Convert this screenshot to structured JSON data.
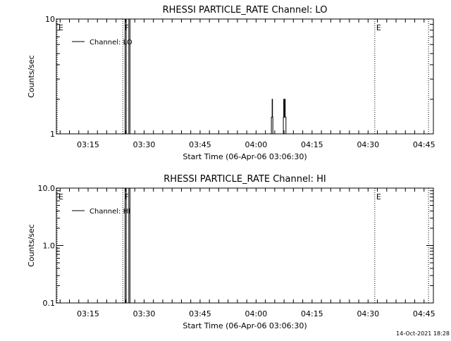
{
  "footer": {
    "timestamp": "14-Oct-2021 18:28"
  },
  "chart_data": [
    {
      "type": "line",
      "title": "RHESSI PARTICLE_RATE Channel: LO",
      "xlabel": "Start Time (06-Apr-06 03:06:30)",
      "ylabel": "Counts/sec",
      "y_scale": "log",
      "ylim": [
        1,
        10
      ],
      "x_unit": "minutes after 03:06:30",
      "xlim": [
        0,
        101
      ],
      "x_ticks": [
        {
          "label": "03:15",
          "x": 8.5
        },
        {
          "label": "03:30",
          "x": 23.5
        },
        {
          "label": "03:45",
          "x": 38.5
        },
        {
          "label": "04:00",
          "x": 53.5
        },
        {
          "label": "04:15",
          "x": 68.5
        },
        {
          "label": "04:30",
          "x": 83.5
        },
        {
          "label": "04:45",
          "x": 98.5
        }
      ],
      "y_ticks": [
        {
          "label": "1",
          "value": 1
        },
        {
          "label": "10",
          "value": 10
        }
      ],
      "legend": {
        "entries": [
          "Channel: LO"
        ],
        "position": "top-left"
      },
      "markers": [
        {
          "label": "E",
          "x": 0.2
        },
        {
          "label": "F",
          "x": 17.8
        },
        {
          "label": "E",
          "x": 85.3
        },
        {
          "label": "",
          "x": 99.7
        }
      ],
      "series": [
        {
          "name": "Channel: LO",
          "points": [
            [
              18.4,
              1
            ],
            [
              18.4,
              10
            ],
            [
              18.7,
              10
            ],
            [
              18.7,
              1
            ],
            [
              19.4,
              1
            ],
            [
              19.4,
              10
            ],
            [
              19.7,
              10
            ],
            [
              19.7,
              1
            ],
            [
              57.6,
              1
            ],
            [
              57.6,
              1.4
            ],
            [
              57.8,
              1.4
            ],
            [
              57.8,
              2
            ],
            [
              57.9,
              2
            ],
            [
              57.9,
              1.4
            ],
            [
              58.0,
              1.4
            ],
            [
              58.0,
              1
            ],
            [
              60.8,
              1
            ],
            [
              60.8,
              1.4
            ],
            [
              60.9,
              1.4
            ],
            [
              60.9,
              2
            ],
            [
              61.0,
              2
            ],
            [
              61.0,
              1.4
            ],
            [
              61.2,
              1.4
            ],
            [
              61.2,
              2
            ],
            [
              61.3,
              2
            ],
            [
              61.3,
              1.4
            ],
            [
              61.5,
              1.4
            ],
            [
              61.5,
              1
            ]
          ]
        }
      ]
    },
    {
      "type": "line",
      "title": "RHESSI PARTICLE_RATE Channel: HI",
      "xlabel": "Start Time (06-Apr-06 03:06:30)",
      "ylabel": "Counts/sec",
      "y_scale": "log",
      "ylim": [
        0.1,
        10
      ],
      "x_unit": "minutes after 03:06:30",
      "xlim": [
        0,
        101
      ],
      "x_ticks": [
        {
          "label": "03:15",
          "x": 8.5
        },
        {
          "label": "03:30",
          "x": 23.5
        },
        {
          "label": "03:45",
          "x": 38.5
        },
        {
          "label": "04:00",
          "x": 53.5
        },
        {
          "label": "04:15",
          "x": 68.5
        },
        {
          "label": "04:30",
          "x": 83.5
        },
        {
          "label": "04:45",
          "x": 98.5
        }
      ],
      "y_ticks": [
        {
          "label": "0.1",
          "value": 0.1
        },
        {
          "label": "1.0",
          "value": 1
        },
        {
          "label": "10.0",
          "value": 10
        }
      ],
      "legend": {
        "entries": [
          "Channel: HI"
        ],
        "position": "top-left"
      },
      "markers": [
        {
          "label": "E",
          "x": 0.2
        },
        {
          "label": "F",
          "x": 17.8
        },
        {
          "label": "E",
          "x": 85.3
        },
        {
          "label": "",
          "x": 99.7
        }
      ],
      "series": [
        {
          "name": "Channel: HI",
          "points": [
            [
              18.4,
              0.1
            ],
            [
              18.4,
              10
            ],
            [
              18.7,
              10
            ],
            [
              18.7,
              0.1
            ],
            [
              19.4,
              0.1
            ],
            [
              19.4,
              10
            ],
            [
              19.7,
              10
            ],
            [
              19.7,
              0.1
            ]
          ]
        }
      ]
    }
  ]
}
